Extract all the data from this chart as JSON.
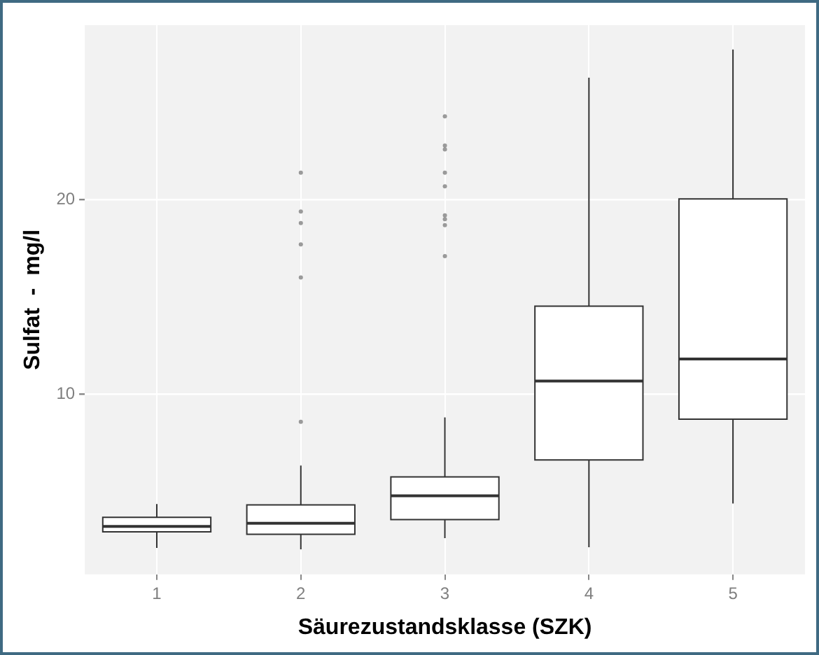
{
  "chart_data": {
    "type": "box",
    "xlabel": "Säurezustandsklasse (SZK)",
    "ylabel": "Sulfat  -  mg/l",
    "categories": [
      "1",
      "2",
      "3",
      "4",
      "5"
    ],
    "boxes": [
      {
        "low": 2.06,
        "q1": 2.89,
        "median": 3.17,
        "q3": 3.64,
        "high": 4.33
      },
      {
        "low": 1.99,
        "q1": 2.77,
        "median": 3.33,
        "q3": 4.28,
        "high": 6.31,
        "outliers": [
          8.56,
          16.0,
          17.7,
          18.8,
          19.4,
          21.4
        ]
      },
      {
        "low": 2.57,
        "q1": 3.52,
        "median": 4.75,
        "q3": 5.72,
        "high": 8.79,
        "outliers": [
          17.1,
          18.7,
          19.0,
          19.2,
          20.7,
          21.4,
          22.6,
          22.8,
          24.3
        ]
      },
      {
        "low": 2.1,
        "q1": 6.6,
        "median": 10.66,
        "q3": 14.52,
        "high": 26.3
      },
      {
        "low": 4.35,
        "q1": 8.7,
        "median": 11.8,
        "q3": 20.05,
        "high": 27.75
      }
    ],
    "ylim": [
      0.7,
      29
    ],
    "yticks": [
      10,
      20
    ],
    "grid": true,
    "legend": false
  }
}
